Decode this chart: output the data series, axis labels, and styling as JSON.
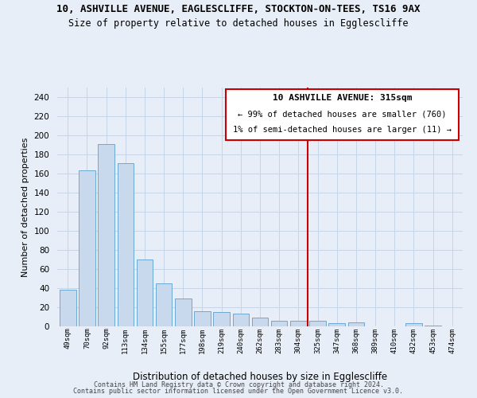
{
  "title1": "10, ASHVILLE AVENUE, EAGLESCLIFFE, STOCKTON-ON-TEES, TS16 9AX",
  "title2": "Size of property relative to detached houses in Egglescliffe",
  "xlabel": "Distribution of detached houses by size in Egglescliffe",
  "ylabel": "Number of detached properties",
  "bar_labels": [
    "49sqm",
    "70sqm",
    "92sqm",
    "113sqm",
    "134sqm",
    "155sqm",
    "177sqm",
    "198sqm",
    "219sqm",
    "240sqm",
    "262sqm",
    "283sqm",
    "304sqm",
    "325sqm",
    "347sqm",
    "368sqm",
    "389sqm",
    "410sqm",
    "432sqm",
    "453sqm",
    "474sqm"
  ],
  "bar_values": [
    38,
    163,
    191,
    171,
    70,
    45,
    29,
    16,
    15,
    13,
    9,
    6,
    6,
    6,
    3,
    4,
    0,
    0,
    3,
    1,
    0
  ],
  "bar_color": "#c8d9ee",
  "bar_edge_color": "#6aaad4",
  "vline_x_index": 13,
  "vline_color": "#cc0000",
  "ylim": [
    0,
    250
  ],
  "yticks": [
    0,
    20,
    40,
    60,
    80,
    100,
    120,
    140,
    160,
    180,
    200,
    220,
    240
  ],
  "annotation_title": "10 ASHVILLE AVENUE: 315sqm",
  "annotation_line1": "← 99% of detached houses are smaller (760)",
  "annotation_line2": "1% of semi-detached houses are larger (11) →",
  "grid_color": "#c8d4e8",
  "bg_color": "#e8eef8",
  "footer1": "Contains HM Land Registry data © Crown copyright and database right 2024.",
  "footer2": "Contains public sector information licensed under the Open Government Licence v3.0."
}
